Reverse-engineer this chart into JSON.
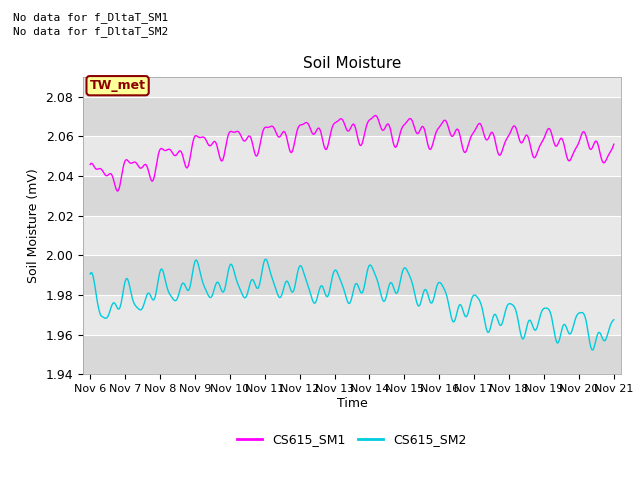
{
  "title": "Soil Moisture",
  "ylabel": "Soil Moisture (mV)",
  "xlabel": "Time",
  "ylim": [
    1.94,
    2.09
  ],
  "yticks": [
    1.94,
    1.96,
    1.98,
    2.0,
    2.02,
    2.04,
    2.06,
    2.08
  ],
  "xtick_labels": [
    "Nov 6",
    "Nov 7",
    "Nov 8",
    "Nov 9",
    "Nov 10",
    "Nov 11",
    "Nov 12",
    "Nov 13",
    "Nov 14",
    "Nov 15",
    "Nov 16",
    "Nov 17",
    "Nov 18",
    "Nov 19",
    "Nov 20",
    "Nov 21"
  ],
  "no_data_text1": "No data for f_DltaT_SM1",
  "no_data_text2": "No data for f_DltaT_SM2",
  "tw_met_label": "TW_met",
  "legend_labels": [
    "CS615_SM1",
    "CS615_SM2"
  ],
  "sm1_color": "#FF00FF",
  "sm2_color": "#00CCDD",
  "bg_color": "#E8E8E8",
  "fig_bg_color": "#FFFFFF",
  "grid_color": "#FFFFFF",
  "alt_bg_color": "#D8D8D8"
}
